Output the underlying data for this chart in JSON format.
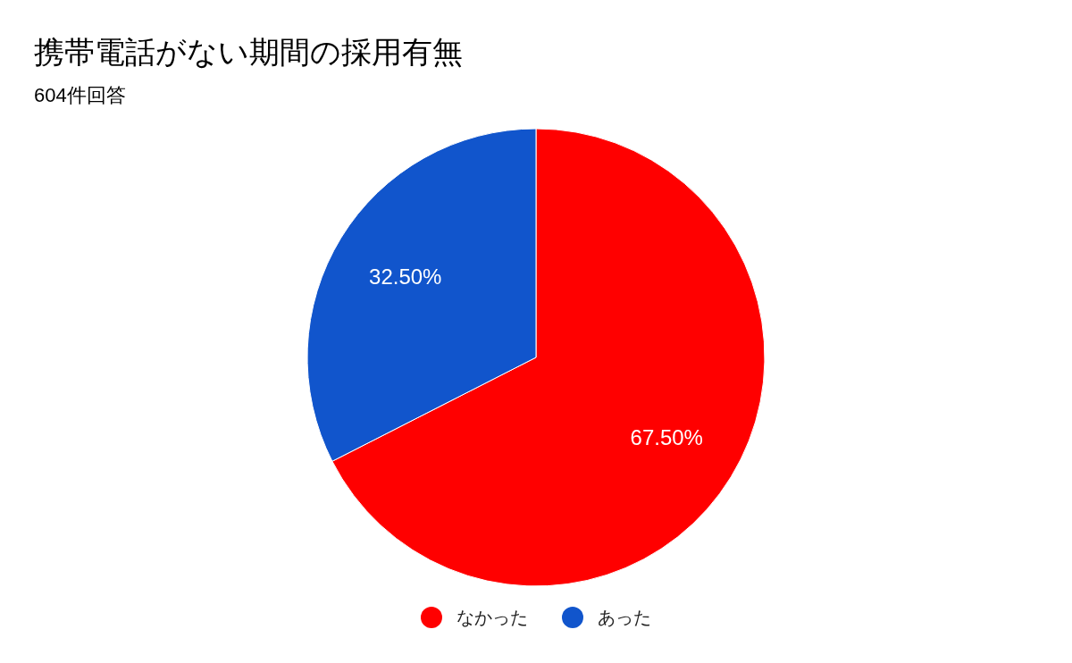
{
  "chart_data": {
    "type": "pie",
    "title": "携帯電話がない期間の採用有無",
    "subtitle": "604件回答",
    "categories": [
      "なかった",
      "あった"
    ],
    "values": [
      67.5,
      32.5
    ],
    "colors": [
      "#ff0000",
      "#1155cc"
    ],
    "value_labels": [
      "67.50%",
      "32.50%"
    ],
    "legend": "bottom"
  }
}
